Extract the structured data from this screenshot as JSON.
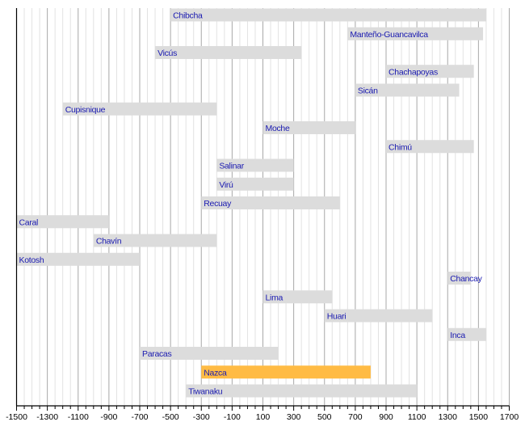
{
  "chart_data": {
    "type": "bar",
    "orientation": "horizontal-timeline",
    "xlim": [
      -1500,
      1700
    ],
    "grid": true,
    "tick_labels": [
      "-1500",
      "-1300",
      "-1100",
      "-900",
      "-700",
      "-500",
      "-300",
      "-100",
      "100",
      "300",
      "500",
      "700",
      "900",
      "1100",
      "1300",
      "1500",
      "1700"
    ],
    "colors": {
      "default_bar": "#dcdcdc",
      "highlight_bar": "#ffbb44",
      "label": "#1a1ab0"
    },
    "series": [
      {
        "name": "Chibcha",
        "start": -500,
        "end": 1550
      },
      {
        "name": "Manteño-Guancavilca",
        "start": 650,
        "end": 1530
      },
      {
        "name": "Vicús",
        "start": -600,
        "end": 350
      },
      {
        "name": "Chachapoyas",
        "start": 900,
        "end": 1470
      },
      {
        "name": "Sicán",
        "start": 700,
        "end": 1375
      },
      {
        "name": "Cupisnique",
        "start": -1200,
        "end": -200
      },
      {
        "name": "Moche",
        "start": 100,
        "end": 700
      },
      {
        "name": "Chimú",
        "start": 900,
        "end": 1470
      },
      {
        "name": "Salinar",
        "start": -200,
        "end": 300
      },
      {
        "name": "Virú",
        "start": -200,
        "end": 300
      },
      {
        "name": "Recuay",
        "start": -300,
        "end": 600
      },
      {
        "name": "Caral",
        "start": -1500,
        "end": -900
      },
      {
        "name": "Chavín",
        "start": -1000,
        "end": -200
      },
      {
        "name": "Kotosh",
        "start": -1500,
        "end": -700
      },
      {
        "name": "Chancay",
        "start": 1300,
        "end": 1450
      },
      {
        "name": "Lima",
        "start": 100,
        "end": 550
      },
      {
        "name": "Huari",
        "start": 500,
        "end": 1200
      },
      {
        "name": "Inca",
        "start": 1300,
        "end": 1550
      },
      {
        "name": "Paracas",
        "start": -700,
        "end": 200
      },
      {
        "name": "Nazca",
        "start": -300,
        "end": 800,
        "highlight": true
      },
      {
        "name": "Tiwanaku",
        "start": -400,
        "end": 1100
      }
    ]
  }
}
